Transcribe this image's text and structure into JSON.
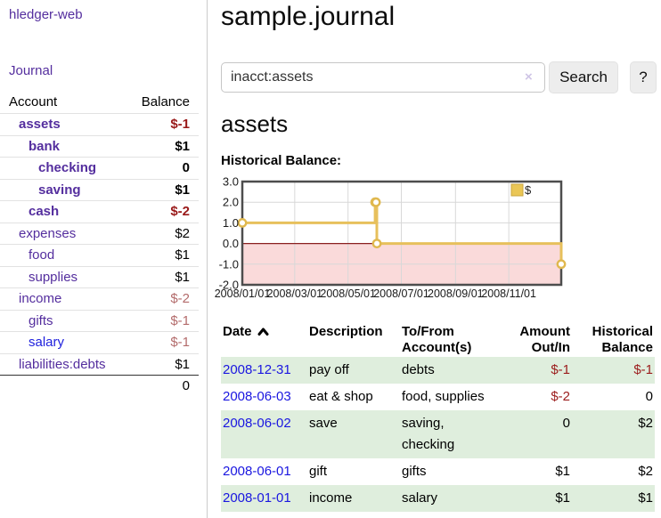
{
  "app": {
    "title": "hledger-web"
  },
  "sidebar": {
    "journal_label": "Journal",
    "accounts": {
      "header_account": "Account",
      "header_balance": "Balance",
      "rows": [
        {
          "name": "assets",
          "depth": 1,
          "bold": true,
          "balance": "$-1",
          "neg": "strong",
          "link": "purple"
        },
        {
          "name": "bank",
          "depth": 2,
          "bold": true,
          "balance": "$1",
          "neg": "none",
          "link": "purple"
        },
        {
          "name": "checking",
          "depth": 3,
          "bold": true,
          "balance": "0",
          "neg": "none",
          "link": "purple"
        },
        {
          "name": "saving",
          "depth": 3,
          "bold": true,
          "balance": "$1",
          "neg": "none",
          "link": "purple"
        },
        {
          "name": "cash",
          "depth": 2,
          "bold": true,
          "balance": "$-2",
          "neg": "strong",
          "link": "purple"
        },
        {
          "name": "expenses",
          "depth": 1,
          "bold": false,
          "balance": "$2",
          "neg": "none",
          "link": "purple"
        },
        {
          "name": "food",
          "depth": 2,
          "bold": false,
          "balance": "$1",
          "neg": "none",
          "link": "purple"
        },
        {
          "name": "supplies",
          "depth": 2,
          "bold": false,
          "balance": "$1",
          "neg": "none",
          "link": "purple"
        },
        {
          "name": "income",
          "depth": 1,
          "bold": false,
          "balance": "$-2",
          "neg": "muted",
          "link": "purple"
        },
        {
          "name": "gifts",
          "depth": 2,
          "bold": false,
          "balance": "$-1",
          "neg": "muted",
          "link": "purple"
        },
        {
          "name": "salary",
          "depth": 2,
          "bold": false,
          "balance": "$-1",
          "neg": "muted",
          "link": "blue"
        },
        {
          "name": "liabilities:debts",
          "depth": 1,
          "bold": false,
          "balance": "$1",
          "neg": "none",
          "link": "purple"
        }
      ],
      "total": "0"
    }
  },
  "header": {
    "title": "sample.journal"
  },
  "search": {
    "value": "inacct:assets",
    "clear_icon": "×",
    "button_label": "Search",
    "help_label": "?"
  },
  "account_page": {
    "heading": "assets",
    "chart_label": "Historical Balance:"
  },
  "chart_data": {
    "type": "line",
    "step": true,
    "title": "Historical Balance",
    "legend": "$",
    "legend_position": "top-right",
    "series": [
      {
        "name": "$",
        "points": [
          [
            "2008-01-01",
            1
          ],
          [
            "2008-06-01",
            2
          ],
          [
            "2008-06-02",
            2
          ],
          [
            "2008-06-03",
            0
          ],
          [
            "2008-12-31",
            -1
          ]
        ]
      }
    ],
    "x_ticks": [
      "2008/01/01",
      "2008/03/01",
      "2008/05/01",
      "2008/07/01",
      "2008/09/01",
      "2008/11/01"
    ],
    "y_tick_labels": [
      "3.0",
      "2.0",
      "1.0",
      "0.0",
      "-1.0",
      "-2.0"
    ],
    "ylim": [
      -2,
      3
    ],
    "x_range": [
      "2008-01-01",
      "2008-12-31"
    ],
    "grid": true,
    "colors": {
      "line": "#e7c05c",
      "marker_ring": "#e0b84e",
      "marker_fill": "#ffffff",
      "negative_area": "#fadada",
      "zero_line": "#8b2020",
      "grid": "#d8d8d8",
      "border": "#4d4d4d",
      "legend_fill": "#eac655",
      "legend_border": "#caa53e"
    }
  },
  "transactions": {
    "headers": {
      "date": "Date",
      "description": "Description",
      "tofrom1": "To/From",
      "tofrom2": "Account(s)",
      "amount1": "Amount",
      "amount2": "Out/In",
      "hist1": "Historical",
      "hist2": "Balance"
    },
    "rows": [
      {
        "date": "2008-12-31",
        "description": "pay off",
        "accounts": "debts",
        "amount": "$-1",
        "amount_neg": true,
        "balance": "$-1",
        "balance_neg": true,
        "shaded": true
      },
      {
        "date": "2008-06-03",
        "description": "eat & shop",
        "accounts": "food, supplies",
        "amount": "$-2",
        "amount_neg": true,
        "balance": "0",
        "balance_neg": false,
        "shaded": false
      },
      {
        "date": "2008-06-02",
        "description": "save",
        "accounts": "saving, checking",
        "amount": "0",
        "amount_neg": false,
        "balance": "$2",
        "balance_neg": false,
        "shaded": true
      },
      {
        "date": "2008-06-01",
        "description": "gift",
        "accounts": "gifts",
        "amount": "$1",
        "amount_neg": false,
        "balance": "$2",
        "balance_neg": false,
        "shaded": false
      },
      {
        "date": "2008-01-01",
        "description": "income",
        "accounts": "salary",
        "amount": "$1",
        "amount_neg": false,
        "balance": "$1",
        "balance_neg": false,
        "shaded": true
      }
    ]
  }
}
